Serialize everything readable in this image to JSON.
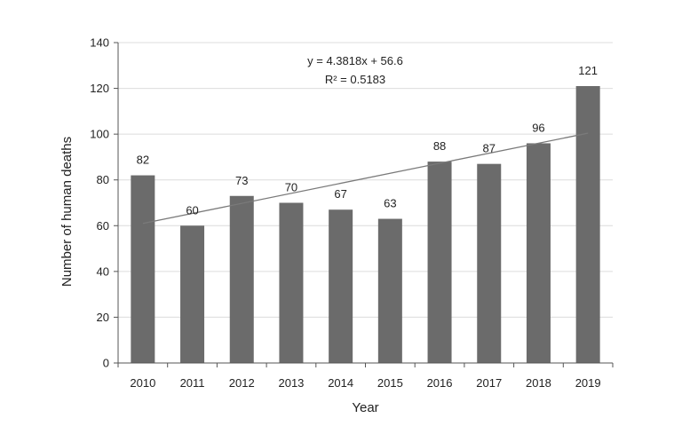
{
  "chart_data": {
    "type": "bar",
    "title": "",
    "xlabel": "Year",
    "ylabel": "Number of human deaths",
    "categories": [
      "2010",
      "2011",
      "2012",
      "2013",
      "2014",
      "2015",
      "2016",
      "2017",
      "2018",
      "2019"
    ],
    "values": [
      82,
      60,
      73,
      70,
      67,
      63,
      88,
      87,
      96,
      121
    ],
    "data_labels": [
      "82",
      "60",
      "73",
      "70",
      "67",
      "63",
      "88",
      "87",
      "96",
      "121"
    ],
    "ylim": [
      0,
      140
    ],
    "yticks": [
      0,
      20,
      40,
      60,
      80,
      100,
      120,
      140
    ],
    "ytick_labels": [
      "0",
      "20",
      "40",
      "60",
      "80",
      "100",
      "120",
      "140"
    ],
    "grid": true,
    "legend": "none",
    "bar_color": "#6b6b6b",
    "trendline": {
      "type": "linear",
      "slope": 4.3818,
      "intercept": 56.6,
      "equation": "y = 4.3818x + 56.6",
      "r_squared": "R² = 0.5183"
    }
  }
}
